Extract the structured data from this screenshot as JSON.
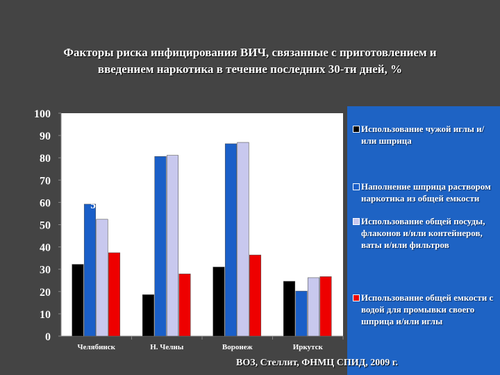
{
  "title": {
    "line1": "Факторы риска инфицирования ВИЧ, связанные с приготовлением и",
    "line2": "введением наркотика в течение последних 30-ти дней, %"
  },
  "source": "ВОЗ, Стеллит, ФНМЦ СПИД, 2009 г.",
  "colors": {
    "background": "#444444",
    "plot_background": "#ffffff",
    "legend_background": "#1e63c4",
    "axis_text": "#ffffff"
  },
  "chart_data": {
    "type": "bar",
    "title": "Факторы риска инфицирования ВИЧ, связанные с приготовлением и введением наркотика в течение последних 30-ти дней, %",
    "categories": [
      "Челябинск",
      "Н. Челны",
      "Воронеж",
      "Иркутск"
    ],
    "series": [
      {
        "name": "Использование чужой иглы и/или шприца",
        "color": "#000000",
        "values": [
          32.2,
          18.6,
          31,
          24.6
        ],
        "labels": [
          "32,2",
          "18,6",
          "31",
          "24,6"
        ]
      },
      {
        "name": "Наполнение шприца раствором наркотика из общей емкости",
        "color": "#1a5fc8",
        "values": [
          59.2,
          80.6,
          86.3,
          20.2
        ],
        "labels": [
          "59,2",
          "80,6",
          "86,3",
          "20,2"
        ]
      },
      {
        "name": "Использование общей посуды, флаконов и/или контейнеров, ваты и/или фильтров",
        "color": "#c8c8ee",
        "values": [
          52.4,
          81.1,
          86.9,
          26.2
        ],
        "labels": [
          "52,4",
          "81,1",
          "86,9",
          "26,2"
        ]
      },
      {
        "name": "Использование общей емкости с водой для промывки своего шприца и/или иглы",
        "color": "#ee0000",
        "values": [
          37.4,
          27.9,
          36.4,
          26.7
        ],
        "labels": [
          "37,4",
          "27,9",
          "36,4",
          "26,7"
        ]
      }
    ],
    "ylim": [
      0,
      100
    ],
    "yticks": [
      0,
      10,
      20,
      30,
      40,
      50,
      60,
      70,
      80,
      90,
      100
    ],
    "grid": false,
    "legend_placement": "right"
  }
}
